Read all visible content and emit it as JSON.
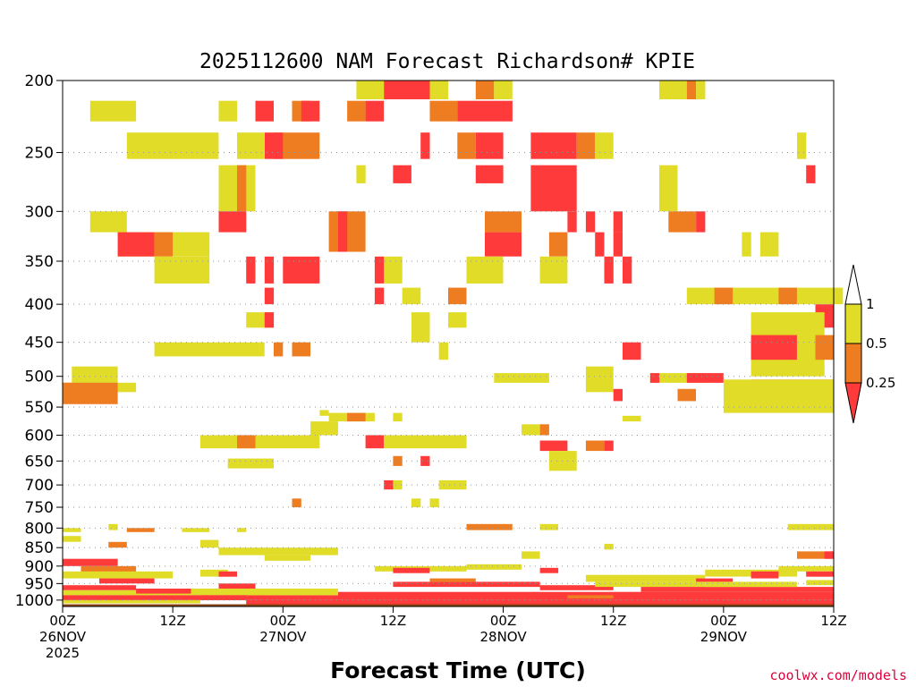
{
  "chart_data": {
    "type": "heatmap",
    "title": "2025112600 NAM Forecast Richardson# KPIE",
    "xlabel": "Forecast Time (UTC)",
    "ylabel": "",
    "credit": "coolwx.com/models",
    "y_unit": "hPa",
    "ylim": [
      1020,
      200
    ],
    "y_ticks": [
      "200",
      "250",
      "300",
      "350",
      "400",
      "450",
      "500",
      "550",
      "600",
      "650",
      "700",
      "750",
      "800",
      "850",
      "900",
      "950",
      "1000"
    ],
    "xlim": [
      0,
      84
    ],
    "x_unit": "forecast hour",
    "x_ticks": [
      {
        "hour": 0,
        "lines": [
          "00Z",
          "26NOV",
          "2025"
        ]
      },
      {
        "hour": 12,
        "lines": [
          "12Z"
        ]
      },
      {
        "hour": 24,
        "lines": [
          "00Z",
          "27NOV"
        ]
      },
      {
        "hour": 36,
        "lines": [
          "12Z"
        ]
      },
      {
        "hour": 48,
        "lines": [
          "00Z",
          "28NOV"
        ]
      },
      {
        "hour": 60,
        "lines": [
          "12Z"
        ]
      },
      {
        "hour": 72,
        "lines": [
          "00Z",
          "29NOV"
        ]
      },
      {
        "hour": 84,
        "lines": [
          "12Z"
        ]
      }
    ],
    "colorbar": {
      "levels": [
        "1",
        "0.5",
        "0.25"
      ],
      "colors": {
        "above_1": "#ffffff",
        "c05_1": "#e0dc28",
        "c025_05": "#ee7d22",
        "below_025": "#ff3a3a"
      }
    },
    "ground_color": "#8b4513",
    "cells": [
      [
        "y",
        32,
        35,
        200,
        212
      ],
      [
        "r",
        35,
        40,
        200,
        212
      ],
      [
        "y",
        40,
        42,
        200,
        212
      ],
      [
        "o",
        45,
        47,
        200,
        212
      ],
      [
        "y",
        47,
        49,
        200,
        212
      ],
      [
        "y",
        65,
        68,
        200,
        212
      ],
      [
        "o",
        68,
        69,
        200,
        212
      ],
      [
        "y",
        69,
        70,
        200,
        212
      ],
      [
        "o",
        31,
        33,
        213,
        227
      ],
      [
        "r",
        33,
        35,
        213,
        227
      ],
      [
        "o",
        40,
        43,
        213,
        227
      ],
      [
        "r",
        43,
        49,
        213,
        227
      ],
      [
        "y",
        3,
        8,
        213,
        227
      ],
      [
        "y",
        17,
        19,
        213,
        227
      ],
      [
        "r",
        21,
        23,
        213,
        227
      ],
      [
        "o",
        25,
        27,
        213,
        227
      ],
      [
        "r",
        26,
        28,
        213,
        227
      ],
      [
        "y",
        7,
        17,
        235,
        255
      ],
      [
        "o",
        23,
        28,
        235,
        255
      ],
      [
        "r",
        22,
        24,
        235,
        255
      ],
      [
        "y",
        19,
        22,
        235,
        255
      ],
      [
        "r",
        39,
        40,
        235,
        255
      ],
      [
        "o",
        43,
        45,
        235,
        255
      ],
      [
        "r",
        45,
        48,
        235,
        255
      ],
      [
        "r",
        51,
        56,
        235,
        255
      ],
      [
        "o",
        56,
        58,
        235,
        255
      ],
      [
        "y",
        58,
        60,
        235,
        255
      ],
      [
        "y",
        80,
        81,
        235,
        255
      ],
      [
        "y",
        17,
        21,
        260,
        300
      ],
      [
        "o",
        19,
        20,
        260,
        300
      ],
      [
        "r",
        36,
        38,
        260,
        275
      ],
      [
        "r",
        45,
        48,
        260,
        275
      ],
      [
        "r",
        51,
        56,
        260,
        300
      ],
      [
        "y",
        32,
        33,
        260,
        275
      ],
      [
        "y",
        65,
        67,
        260,
        300
      ],
      [
        "r",
        81,
        82,
        260,
        275
      ],
      [
        "o",
        46,
        50,
        300,
        320
      ],
      [
        "y",
        3,
        7,
        300,
        320
      ],
      [
        "r",
        17,
        20,
        300,
        320
      ],
      [
        "o",
        29,
        33,
        300,
        340
      ],
      [
        "r",
        30,
        31,
        300,
        340
      ],
      [
        "r",
        55,
        56,
        300,
        320
      ],
      [
        "r",
        57,
        58,
        300,
        320
      ],
      [
        "r",
        60,
        61,
        300,
        320
      ],
      [
        "r",
        69,
        70,
        300,
        320
      ],
      [
        "o",
        66,
        69,
        300,
        320
      ],
      [
        "y",
        6,
        16,
        320,
        345
      ],
      [
        "r",
        6,
        10,
        320,
        345
      ],
      [
        "o",
        10,
        12,
        320,
        345
      ],
      [
        "o",
        53,
        55,
        320,
        345
      ],
      [
        "r",
        46,
        50,
        320,
        345
      ],
      [
        "y",
        74,
        75,
        320,
        345
      ],
      [
        "y",
        76,
        78,
        320,
        345
      ],
      [
        "r",
        58,
        59,
        320,
        345
      ],
      [
        "r",
        60,
        61,
        320,
        345
      ],
      [
        "y",
        10,
        16,
        345,
        375
      ],
      [
        "r",
        24,
        28,
        345,
        375
      ],
      [
        "y",
        35,
        37,
        345,
        375
      ],
      [
        "y",
        44,
        48,
        345,
        375
      ],
      [
        "y",
        52,
        55,
        345,
        375
      ],
      [
        "r",
        20,
        21,
        345,
        375
      ],
      [
        "r",
        22,
        23,
        345,
        375
      ],
      [
        "r",
        34,
        35,
        345,
        375
      ],
      [
        "r",
        59,
        60,
        345,
        375
      ],
      [
        "r",
        61,
        62,
        345,
        375
      ],
      [
        "r",
        22,
        23,
        380,
        400
      ],
      [
        "r",
        34,
        35,
        380,
        400
      ],
      [
        "o",
        42,
        44,
        380,
        400
      ],
      [
        "y",
        37,
        39,
        380,
        400
      ],
      [
        "y",
        68,
        85,
        380,
        400
      ],
      [
        "o",
        71,
        73,
        380,
        400
      ],
      [
        "o",
        78,
        80,
        380,
        400
      ],
      [
        "r",
        82,
        84,
        400,
        430
      ],
      [
        "y",
        20,
        23,
        410,
        430
      ],
      [
        "r",
        22,
        23,
        410,
        430
      ],
      [
        "y",
        38,
        40,
        410,
        450
      ],
      [
        "y",
        42,
        44,
        410,
        430
      ],
      [
        "y",
        75,
        83,
        410,
        500
      ],
      [
        "r",
        75,
        80,
        440,
        475
      ],
      [
        "o",
        82,
        84,
        440,
        475
      ],
      [
        "y",
        10,
        22,
        450,
        470
      ],
      [
        "o",
        23,
        24,
        450,
        470
      ],
      [
        "o",
        25,
        27,
        450,
        470
      ],
      [
        "r",
        61,
        63,
        450,
        475
      ],
      [
        "y",
        41,
        42,
        450,
        475
      ],
      [
        "y",
        1,
        6,
        485,
        510
      ],
      [
        "y",
        0,
        8,
        510,
        525
      ],
      [
        "o",
        0,
        6,
        510,
        545
      ],
      [
        "y",
        57,
        60,
        485,
        525
      ],
      [
        "r",
        60,
        61,
        520,
        540
      ],
      [
        "y",
        47,
        53,
        495,
        510
      ],
      [
        "y",
        64,
        70,
        495,
        510
      ],
      [
        "r",
        68,
        72,
        495,
        510
      ],
      [
        "r",
        75,
        84,
        505,
        550
      ],
      [
        "y",
        72,
        84,
        505,
        560
      ],
      [
        "o",
        67,
        69,
        520,
        540
      ],
      [
        "r",
        64,
        65,
        495,
        510
      ],
      [
        "y",
        29,
        34,
        560,
        575
      ],
      [
        "o",
        31,
        33,
        560,
        575
      ],
      [
        "y",
        36,
        37,
        560,
        575
      ],
      [
        "y",
        28,
        29,
        555,
        565
      ],
      [
        "y",
        61,
        63,
        565,
        575
      ],
      [
        "y",
        27,
        30,
        575,
        600
      ],
      [
        "r",
        33,
        35,
        600,
        625
      ],
      [
        "y",
        15,
        28,
        600,
        625
      ],
      [
        "o",
        19,
        21,
        600,
        625
      ],
      [
        "y",
        35,
        44,
        600,
        625
      ],
      [
        "y",
        50,
        52,
        580,
        600
      ],
      [
        "o",
        52,
        53,
        580,
        600
      ],
      [
        "r",
        52,
        55,
        610,
        630
      ],
      [
        "y",
        53,
        56,
        630,
        670
      ],
      [
        "o",
        57,
        59,
        610,
        630
      ],
      [
        "r",
        59,
        60,
        610,
        630
      ],
      [
        "y",
        18,
        23,
        645,
        665
      ],
      [
        "o",
        36,
        37,
        640,
        660
      ],
      [
        "r",
        39,
        40,
        640,
        660
      ],
      [
        "y",
        41,
        44,
        690,
        710
      ],
      [
        "r",
        35,
        36,
        690,
        710
      ],
      [
        "y",
        36,
        37,
        690,
        710
      ],
      [
        "o",
        25,
        26,
        730,
        750
      ],
      [
        "y",
        40,
        41,
        730,
        750
      ],
      [
        "y",
        38,
        39,
        730,
        750
      ],
      [
        "o",
        44,
        49,
        790,
        805
      ],
      [
        "y",
        52,
        54,
        790,
        805
      ],
      [
        "y",
        79,
        84,
        790,
        805
      ],
      [
        "y",
        5,
        6,
        790,
        805
      ],
      [
        "y",
        0,
        2,
        800,
        810
      ],
      [
        "o",
        7,
        10,
        800,
        810
      ],
      [
        "y",
        13,
        16,
        800,
        810
      ],
      [
        "y",
        19,
        20,
        800,
        810
      ],
      [
        "y",
        0,
        2,
        820,
        835
      ],
      [
        "o",
        5,
        7,
        835,
        850
      ],
      [
        "y",
        15,
        17,
        830,
        850
      ],
      [
        "y",
        59,
        60,
        840,
        855
      ],
      [
        "y",
        17,
        30,
        850,
        870
      ],
      [
        "y",
        22,
        27,
        870,
        885
      ],
      [
        "o",
        80,
        84,
        860,
        880
      ],
      [
        "r",
        83,
        84,
        860,
        880
      ],
      [
        "y",
        50,
        52,
        860,
        880
      ],
      [
        "r",
        0,
        6,
        880,
        900
      ],
      [
        "o",
        2,
        8,
        900,
        920
      ],
      [
        "y",
        0,
        12,
        915,
        935
      ],
      [
        "r",
        4,
        10,
        935,
        950
      ],
      [
        "y",
        15,
        18,
        910,
        930
      ],
      [
        "r",
        17,
        19,
        915,
        930
      ],
      [
        "y",
        34,
        44,
        900,
        915
      ],
      [
        "r",
        36,
        40,
        905,
        920
      ],
      [
        "y",
        44,
        50,
        895,
        910
      ],
      [
        "r",
        52,
        54,
        905,
        920
      ],
      [
        "y",
        57,
        70,
        925,
        945
      ],
      [
        "y",
        70,
        80,
        910,
        930
      ],
      [
        "r",
        75,
        78,
        915,
        935
      ],
      [
        "r",
        69,
        73,
        935,
        945
      ],
      [
        "y",
        78,
        84,
        900,
        915
      ],
      [
        "r",
        81,
        84,
        915,
        930
      ],
      [
        "y",
        81,
        84,
        940,
        955
      ],
      [
        "r",
        0,
        8,
        955,
        970
      ],
      [
        "y",
        0,
        14,
        970,
        985
      ],
      [
        "r",
        8,
        14,
        965,
        980
      ],
      [
        "r",
        17,
        21,
        950,
        965
      ],
      [
        "y",
        14,
        22,
        965,
        985
      ],
      [
        "r",
        36,
        52,
        945,
        960
      ],
      [
        "o",
        40,
        45,
        935,
        945
      ],
      [
        "r",
        52,
        60,
        955,
        970
      ],
      [
        "y",
        58,
        70,
        945,
        960
      ],
      [
        "r",
        63,
        84,
        960,
        975
      ],
      [
        "y",
        70,
        80,
        945,
        960
      ],
      [
        "r",
        0,
        20,
        985,
        1000
      ],
      [
        "r",
        15,
        84,
        985,
        1000
      ],
      [
        "y",
        20,
        30,
        965,
        985
      ],
      [
        "r",
        30,
        84,
        975,
        990
      ],
      [
        "r",
        20,
        84,
        1000,
        1015
      ],
      [
        "o",
        55,
        60,
        985,
        995
      ],
      [
        "y",
        0,
        15,
        1000,
        1010
      ]
    ]
  }
}
